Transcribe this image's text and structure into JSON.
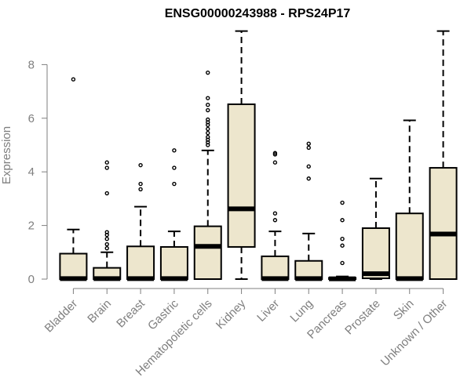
{
  "chart_data": {
    "type": "box",
    "title": "ENSG00000243988 - RPS24P17",
    "ylabel": "Expression",
    "xlabel": "",
    "ylim": [
      0,
      9.3
    ],
    "yticks": [
      "0",
      "2",
      "4",
      "6",
      "8"
    ],
    "box_color": "#ede6cd",
    "categories": [
      "Bladder",
      "Brain",
      "Breast",
      "Gastric",
      "Hematopoietic cells",
      "Kidney",
      "Liver",
      "Lung",
      "Pancreas",
      "Prostate",
      "Skin",
      "Unknown / Other"
    ],
    "boxes": [
      {
        "min": 0,
        "q1": 0,
        "median": 0.02,
        "q3": 0.95,
        "max": 1.85,
        "outliers": [
          7.45
        ]
      },
      {
        "min": 0,
        "q1": 0,
        "median": 0.02,
        "q3": 0.42,
        "max": 1.0,
        "outliers": [
          1.15,
          1.3,
          1.5,
          1.65,
          1.75,
          3.2,
          4.15,
          4.35
        ]
      },
      {
        "min": 0,
        "q1": 0,
        "median": 0.02,
        "q3": 1.22,
        "max": 2.7,
        "outliers": [
          3.35,
          3.55,
          4.25
        ]
      },
      {
        "min": 0,
        "q1": 0,
        "median": 0.02,
        "q3": 1.2,
        "max": 1.78,
        "outliers": [
          3.55,
          4.15,
          4.8
        ]
      },
      {
        "min": 0,
        "q1": 0,
        "median": 1.22,
        "q3": 1.97,
        "max": 4.8,
        "outliers": [
          5.0,
          5.1,
          5.2,
          5.3,
          5.45,
          5.6,
          5.75,
          5.85,
          5.95,
          6.3,
          6.5,
          6.75,
          7.7
        ]
      },
      {
        "min": 0,
        "q1": 1.2,
        "median": 2.62,
        "q3": 6.52,
        "max": 9.25,
        "outliers": []
      },
      {
        "min": 0,
        "q1": 0,
        "median": 0.02,
        "q3": 0.85,
        "max": 1.78,
        "outliers": [
          2.2,
          2.45,
          4.35,
          4.65,
          4.7
        ]
      },
      {
        "min": 0,
        "q1": 0,
        "median": 0.02,
        "q3": 0.68,
        "max": 1.7,
        "outliers": [
          3.75,
          4.2,
          4.9,
          5.05
        ]
      },
      {
        "min": 0,
        "q1": 0,
        "median": 0.01,
        "q3": 0.05,
        "max": 0.1,
        "outliers": [
          0.6,
          1.25,
          1.5,
          2.2,
          2.85
        ]
      },
      {
        "min": 0,
        "q1": 0.03,
        "median": 0.2,
        "q3": 1.9,
        "max": 3.75,
        "outliers": []
      },
      {
        "min": 0,
        "q1": 0,
        "median": 0.02,
        "q3": 2.45,
        "max": 5.92,
        "outliers": []
      },
      {
        "min": 0,
        "q1": 0,
        "median": 1.68,
        "q3": 4.15,
        "max": 9.25,
        "outliers": []
      }
    ]
  }
}
